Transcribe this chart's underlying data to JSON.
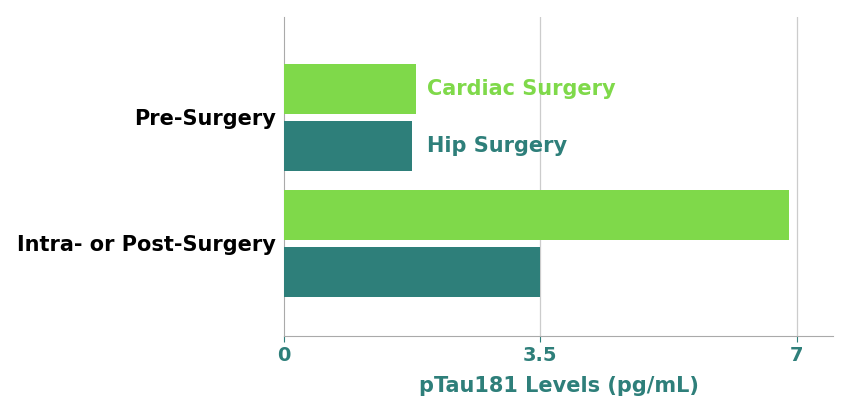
{
  "categories": [
    "Pre-Surgery",
    "Intra- or Post-Surgery"
  ],
  "cardiac_values": [
    1.8,
    6.9
  ],
  "hip_values": [
    1.75,
    3.5
  ],
  "cardiac_color": "#7FD94A",
  "hip_color": "#2E7F7A",
  "cardiac_label": "Cardiac Surgery",
  "hip_label": "Hip Surgery",
  "xlabel": "pTau181 Levels (pg/mL)",
  "xlim": [
    0,
    7.5
  ],
  "xticks": [
    0,
    3.5,
    7
  ],
  "xtick_labels": [
    "0",
    "3.5",
    "7"
  ],
  "bar_height": 0.3,
  "bar_gap": 0.04,
  "cardiac_label_color": "#7FD94A",
  "hip_label_color": "#2E7F7A",
  "ytick_label_color": "#000000",
  "xtick_label_color": "#2E7F7A",
  "xlabel_fontsize": 15,
  "ytick_fontsize": 15,
  "xtick_fontsize": 14,
  "annotation_fontsize": 15,
  "background_color": "#ffffff",
  "group_centers": [
    0.75,
    0.0
  ],
  "ylim": [
    -0.55,
    1.35
  ]
}
